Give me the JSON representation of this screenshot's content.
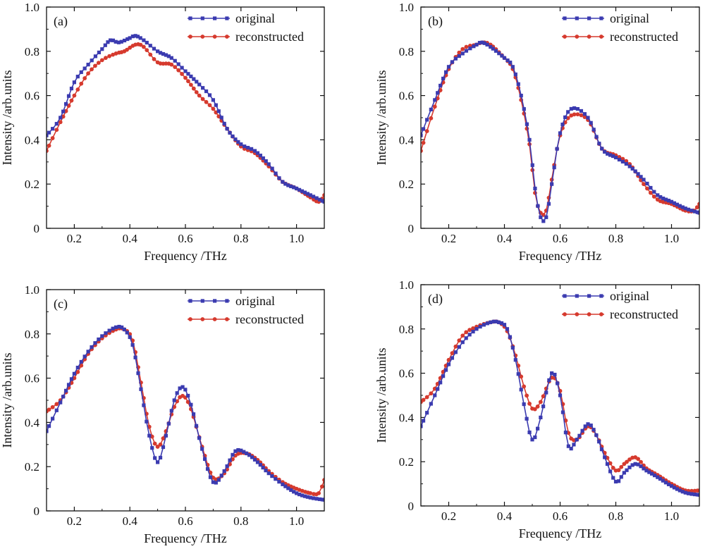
{
  "figure": {
    "xlabel": "Frequency /THz",
    "ylabel": "Intensity /arb.units",
    "series_names": [
      "original",
      "reconstructed"
    ],
    "colors": {
      "original": "#3b3bb0",
      "reconstructed": "#d63a2e"
    }
  },
  "chart_data": [
    {
      "type": "line",
      "panel_label": "(a)",
      "title": "",
      "xlabel": "Frequency /THz",
      "ylabel": "Intensity /arb.units",
      "xlim": [
        0.1,
        1.1
      ],
      "ylim": [
        0,
        1.0
      ],
      "xticks": [
        "0.2",
        "0.4",
        "0.6",
        "0.8",
        "1.0"
      ],
      "yticks": [
        "0",
        "0.2",
        "0.4",
        "0.6",
        "0.8",
        "1.0"
      ],
      "legend": [
        "original",
        "reconstructed"
      ],
      "series": [
        {
          "name": "original",
          "x": [
            0.1,
            0.15,
            0.2,
            0.25,
            0.3,
            0.33,
            0.36,
            0.4,
            0.42,
            0.45,
            0.5,
            0.55,
            0.6,
            0.65,
            0.7,
            0.75,
            0.8,
            0.85,
            0.9,
            0.95,
            1.0,
            1.05,
            1.1
          ],
          "y": [
            0.42,
            0.5,
            0.66,
            0.74,
            0.81,
            0.85,
            0.84,
            0.86,
            0.87,
            0.85,
            0.8,
            0.77,
            0.71,
            0.65,
            0.58,
            0.45,
            0.38,
            0.35,
            0.29,
            0.21,
            0.18,
            0.15,
            0.12
          ]
        },
        {
          "name": "reconstructed",
          "x": [
            0.1,
            0.15,
            0.2,
            0.25,
            0.3,
            0.35,
            0.38,
            0.42,
            0.45,
            0.5,
            0.55,
            0.6,
            0.65,
            0.7,
            0.75,
            0.8,
            0.85,
            0.9,
            0.95,
            1.0,
            1.05,
            1.08,
            1.1
          ],
          "y": [
            0.35,
            0.48,
            0.6,
            0.7,
            0.76,
            0.79,
            0.8,
            0.83,
            0.82,
            0.75,
            0.74,
            0.68,
            0.6,
            0.54,
            0.45,
            0.37,
            0.34,
            0.28,
            0.21,
            0.18,
            0.14,
            0.12,
            0.15
          ]
        }
      ]
    },
    {
      "type": "line",
      "panel_label": "(b)",
      "title": "",
      "xlabel": "Frequency /THz",
      "ylabel": "Intensity /arb.units",
      "xlim": [
        0.1,
        1.1
      ],
      "ylim": [
        0,
        1.0
      ],
      "xticks": [
        "0.2",
        "0.4",
        "0.6",
        "0.8",
        "1.0"
      ],
      "yticks": [
        "0",
        "0.2",
        "0.4",
        "0.6",
        "0.8",
        "1.0"
      ],
      "legend": [
        "original",
        "reconstructed"
      ],
      "series": [
        {
          "name": "original",
          "x": [
            0.1,
            0.15,
            0.2,
            0.25,
            0.3,
            0.32,
            0.35,
            0.4,
            0.43,
            0.46,
            0.49,
            0.51,
            0.53,
            0.55,
            0.57,
            0.6,
            0.64,
            0.7,
            0.75,
            0.8,
            0.85,
            0.9,
            0.95,
            1.0,
            1.05,
            1.1
          ],
          "y": [
            0.42,
            0.58,
            0.73,
            0.79,
            0.83,
            0.84,
            0.82,
            0.77,
            0.73,
            0.6,
            0.4,
            0.18,
            0.05,
            0.05,
            0.2,
            0.43,
            0.54,
            0.5,
            0.36,
            0.32,
            0.28,
            0.22,
            0.15,
            0.12,
            0.09,
            0.07
          ]
        },
        {
          "name": "reconstructed",
          "x": [
            0.1,
            0.15,
            0.2,
            0.25,
            0.3,
            0.32,
            0.35,
            0.4,
            0.43,
            0.46,
            0.49,
            0.51,
            0.53,
            0.55,
            0.57,
            0.6,
            0.64,
            0.7,
            0.75,
            0.8,
            0.85,
            0.9,
            0.95,
            1.0,
            1.05,
            1.08,
            1.1
          ],
          "y": [
            0.35,
            0.55,
            0.72,
            0.81,
            0.83,
            0.84,
            0.83,
            0.77,
            0.72,
            0.58,
            0.38,
            0.16,
            0.07,
            0.08,
            0.22,
            0.42,
            0.51,
            0.49,
            0.36,
            0.33,
            0.29,
            0.2,
            0.13,
            0.11,
            0.08,
            0.08,
            0.11
          ]
        }
      ]
    },
    {
      "type": "line",
      "panel_label": "(c)",
      "title": "",
      "xlabel": "Frequency /THz",
      "ylabel": "Intensity /arb.units",
      "xlim": [
        0.1,
        1.1
      ],
      "ylim": [
        0,
        1.0
      ],
      "xticks": [
        "0.2",
        "0.4",
        "0.6",
        "0.8",
        "1.0"
      ],
      "yticks": [
        "0",
        "0.2",
        "0.4",
        "0.6",
        "0.8",
        "1.0"
      ],
      "legend": [
        "original",
        "reconstructed"
      ],
      "series": [
        {
          "name": "original",
          "x": [
            0.1,
            0.15,
            0.2,
            0.25,
            0.3,
            0.35,
            0.38,
            0.41,
            0.44,
            0.47,
            0.5,
            0.53,
            0.56,
            0.59,
            0.62,
            0.66,
            0.7,
            0.74,
            0.78,
            0.82,
            0.86,
            0.9,
            0.95,
            1.0,
            1.05,
            1.1
          ],
          "y": [
            0.36,
            0.49,
            0.62,
            0.72,
            0.79,
            0.83,
            0.82,
            0.75,
            0.55,
            0.34,
            0.22,
            0.34,
            0.5,
            0.56,
            0.48,
            0.28,
            0.13,
            0.18,
            0.27,
            0.26,
            0.22,
            0.17,
            0.12,
            0.08,
            0.06,
            0.05
          ]
        },
        {
          "name": "reconstructed",
          "x": [
            0.1,
            0.15,
            0.2,
            0.25,
            0.3,
            0.35,
            0.38,
            0.41,
            0.44,
            0.47,
            0.5,
            0.53,
            0.56,
            0.59,
            0.62,
            0.66,
            0.7,
            0.74,
            0.78,
            0.82,
            0.86,
            0.9,
            0.95,
            1.0,
            1.05,
            1.08,
            1.1
          ],
          "y": [
            0.45,
            0.5,
            0.6,
            0.71,
            0.78,
            0.82,
            0.82,
            0.77,
            0.58,
            0.38,
            0.29,
            0.36,
            0.47,
            0.52,
            0.46,
            0.29,
            0.15,
            0.17,
            0.25,
            0.26,
            0.23,
            0.18,
            0.13,
            0.1,
            0.08,
            0.08,
            0.14
          ]
        }
      ]
    },
    {
      "type": "line",
      "panel_label": "(d)",
      "title": "",
      "xlabel": "Frequency /THz",
      "ylabel": "Intensity /arb.units",
      "xlim": [
        0.1,
        1.1
      ],
      "ylim": [
        0,
        1.0
      ],
      "xticks": [
        "0.2",
        "0.4",
        "0.6",
        "0.8",
        "1.0"
      ],
      "yticks": [
        "0",
        "0.2",
        "0.4",
        "0.6",
        "0.8",
        "1.0"
      ],
      "legend": [
        "original",
        "reconstructed"
      ],
      "series": [
        {
          "name": "original",
          "x": [
            0.1,
            0.15,
            0.2,
            0.25,
            0.3,
            0.35,
            0.38,
            0.41,
            0.44,
            0.47,
            0.5,
            0.53,
            0.57,
            0.6,
            0.63,
            0.66,
            0.7,
            0.73,
            0.76,
            0.8,
            0.83,
            0.87,
            0.91,
            0.95,
            1.0,
            1.05,
            1.1
          ],
          "y": [
            0.36,
            0.5,
            0.64,
            0.74,
            0.8,
            0.83,
            0.83,
            0.8,
            0.66,
            0.46,
            0.3,
            0.4,
            0.6,
            0.5,
            0.27,
            0.3,
            0.37,
            0.32,
            0.22,
            0.11,
            0.15,
            0.19,
            0.16,
            0.13,
            0.09,
            0.06,
            0.05
          ]
        },
        {
          "name": "reconstructed",
          "x": [
            0.1,
            0.15,
            0.2,
            0.25,
            0.3,
            0.35,
            0.38,
            0.41,
            0.44,
            0.47,
            0.5,
            0.53,
            0.57,
            0.6,
            0.63,
            0.66,
            0.7,
            0.73,
            0.76,
            0.8,
            0.83,
            0.87,
            0.91,
            0.95,
            1.0,
            1.05,
            1.1
          ],
          "y": [
            0.47,
            0.53,
            0.66,
            0.77,
            0.81,
            0.83,
            0.83,
            0.79,
            0.68,
            0.54,
            0.44,
            0.47,
            0.58,
            0.52,
            0.33,
            0.3,
            0.36,
            0.32,
            0.24,
            0.16,
            0.19,
            0.22,
            0.17,
            0.14,
            0.1,
            0.07,
            0.07
          ]
        }
      ]
    }
  ]
}
